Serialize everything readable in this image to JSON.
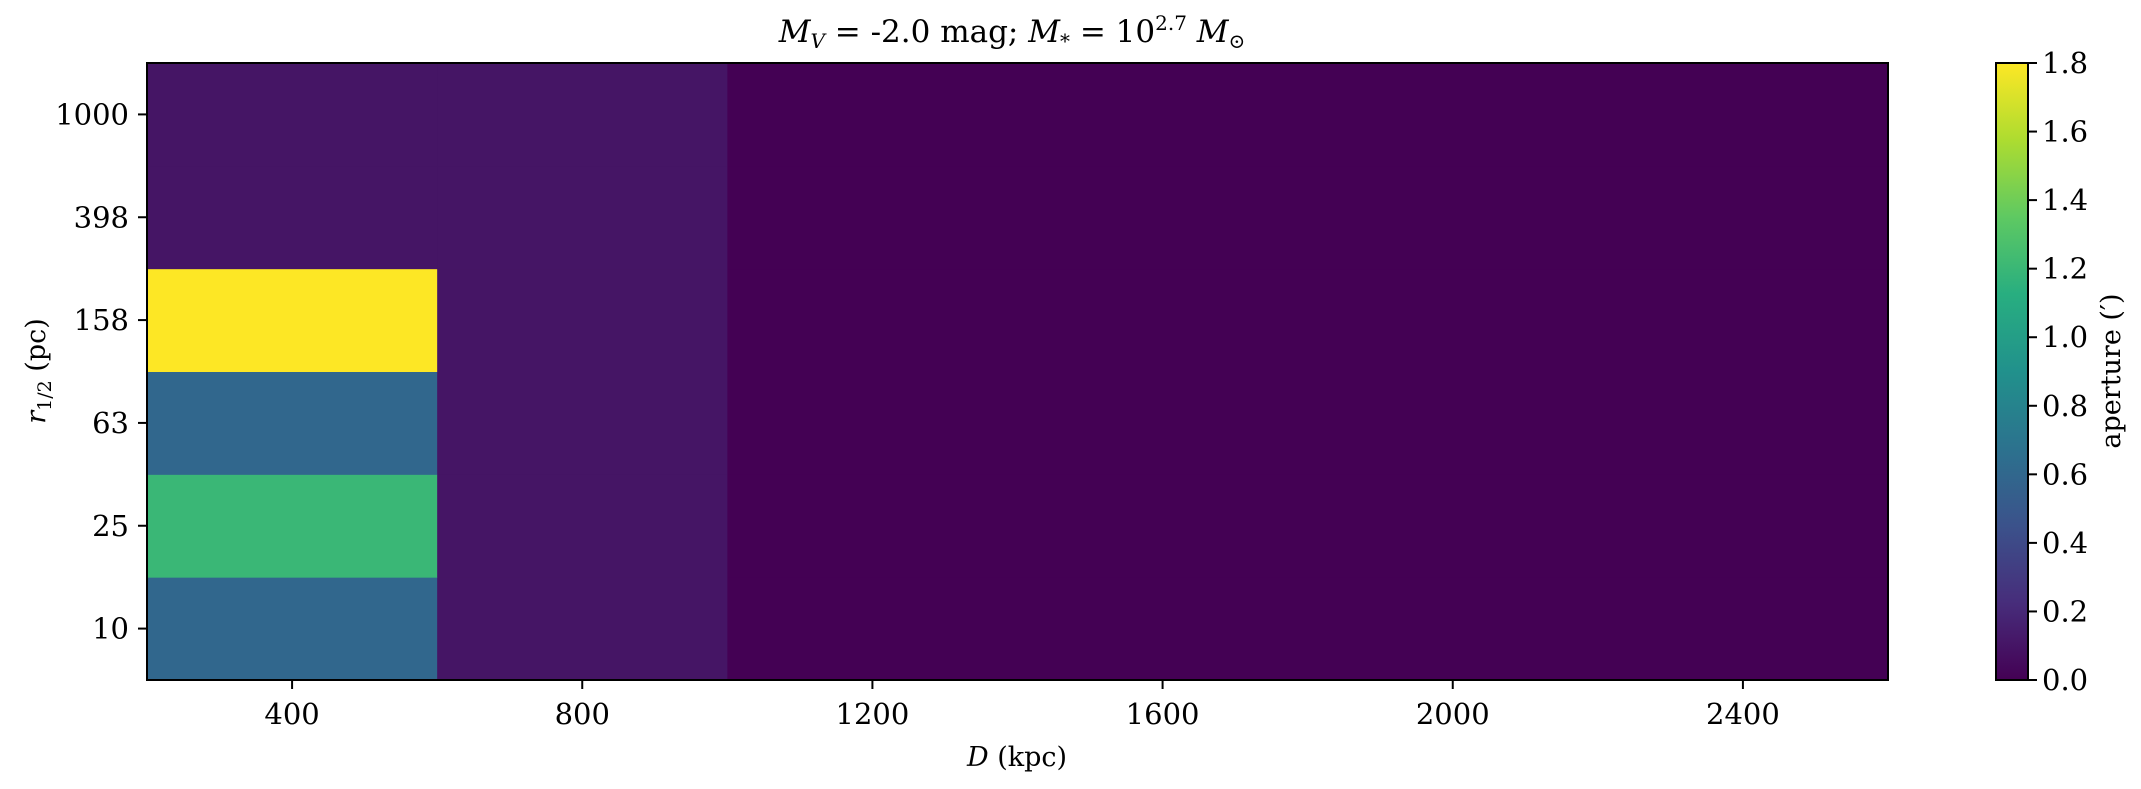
{
  "chart_data": {
    "type": "heatmap",
    "title_parts": {
      "mv": "M",
      "mv_sub": "V",
      "mv_value": " = -2.0 mag; ",
      "ms": "M",
      "ms_sub": "*",
      "ms_eq": " = 10",
      "ms_exp": "2.7",
      "ms_unit": " M",
      "ms_unit_sub": "⊙"
    },
    "xlabel": {
      "var": "D",
      "unit": " (kpc)"
    },
    "ylabel": {
      "var": "r",
      "sub": "1/2",
      "unit": " (pc)"
    },
    "xlim": [
      200,
      2600
    ],
    "x_ticks": [
      400,
      800,
      1200,
      1600,
      2000,
      2400
    ],
    "x_edges": [
      200,
      600,
      1000,
      2600
    ],
    "y_categories": [
      "10",
      "25",
      "63",
      "158",
      "398",
      "1000"
    ],
    "values": [
      [
        0.6,
        0.1,
        0.0
      ],
      [
        1.2,
        0.1,
        0.0
      ],
      [
        0.6,
        0.1,
        0.0
      ],
      [
        1.8,
        0.1,
        0.0
      ],
      [
        0.1,
        0.1,
        0.0
      ],
      [
        0.1,
        0.1,
        0.0
      ]
    ],
    "colorbar": {
      "label": "aperture (′)",
      "range": [
        0.0,
        1.8
      ],
      "ticks": [
        "0.0",
        "0.2",
        "0.4",
        "0.6",
        "0.8",
        "1.0",
        "1.2",
        "1.4",
        "1.6",
        "1.8"
      ],
      "colormap": "viridis"
    }
  }
}
